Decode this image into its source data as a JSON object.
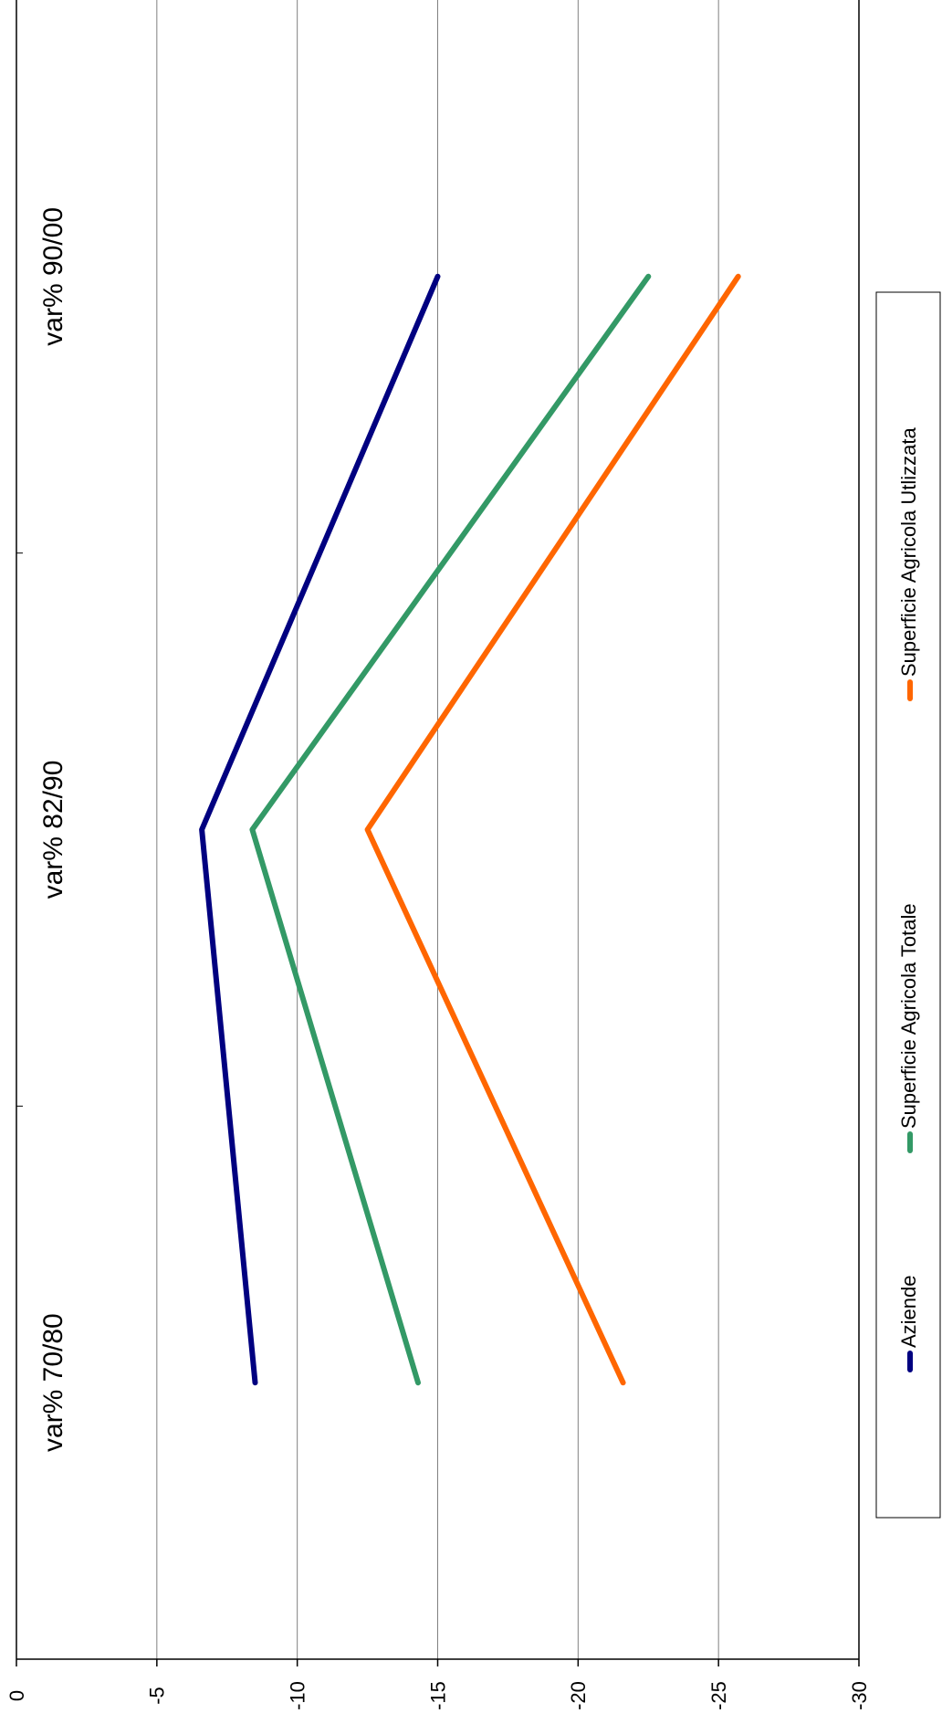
{
  "chart_data": {
    "type": "line",
    "orientation": "rotated-90",
    "categories": [
      "var% 70/80",
      "var% 82/90",
      "var% 90/00"
    ],
    "ylim": [
      -30,
      0
    ],
    "y_ticks": [
      0,
      -5,
      -10,
      -15,
      -20,
      -25,
      -30
    ],
    "y_tick_labels": [
      "0",
      "-5",
      "-10",
      "-15",
      "-20",
      "-25",
      "-30"
    ],
    "grid": "on",
    "legend_position": "bottom",
    "series": [
      {
        "name": "Aziende",
        "color": "#000080",
        "values": [
          -8.5,
          -6.6,
          -15.0
        ]
      },
      {
        "name": "Superficie Agricola Totale",
        "color": "#339966",
        "values": [
          -14.3,
          -8.4,
          -22.5
        ]
      },
      {
        "name": "Superficie Agricola Utlizzata",
        "color": "#ff6600",
        "values": [
          -21.6,
          -12.5,
          -25.7
        ]
      }
    ]
  }
}
